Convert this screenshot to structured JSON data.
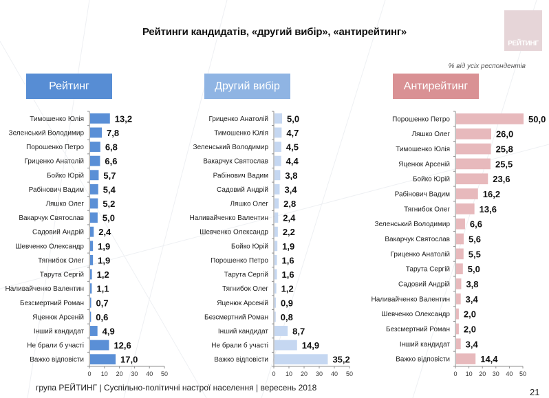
{
  "title": "Рейтинги кандидатів, «другий вибір», «антирейтинг»",
  "logo_text": "РЕЙТИНГ",
  "note": "% від усіх респондентів",
  "footer": "група РЕЙТИНГ |  Суспільно-політичні настрої населення | вересень  2018",
  "page_number": "21",
  "colors": {
    "rating": "#5a8fd6",
    "second_choice": "#c5d7f1",
    "antirating": "#e7b9bc",
    "header_rating": "#578dd4",
    "header_second": "#8fb4e3",
    "header_anti": "#d99194"
  },
  "chart_data": [
    {
      "type": "bar",
      "orientation": "horizontal",
      "title": "Рейтинг",
      "categories": [
        "Тимошенко Юлія",
        "Зеленський Володимир",
        "Порошенко Петро",
        "Гриценко Анатолій",
        "Бойко Юрій",
        "Рабінович Вадим",
        "Ляшко Олег",
        "Вакарчук Святослав",
        "Садовий Андрій",
        "Шевченко Олександр",
        "Тягнибок Олег",
        "Тарута Сергій",
        "Наливайченко Валентин",
        "Безсмертний Роман",
        "Яценюк Арсеній",
        "Інший кандидат",
        "Не брали б участі",
        "Важко відповісти"
      ],
      "values": [
        13.2,
        7.8,
        6.8,
        6.6,
        5.7,
        5.4,
        5.2,
        5.0,
        2.4,
        1.9,
        1.9,
        1.2,
        1.1,
        0.7,
        0.6,
        4.9,
        12.6,
        17.0
      ],
      "labels": [
        "13,2",
        "7,8",
        "6,8",
        "6,6",
        "5,7",
        "5,4",
        "5,2",
        "5,0",
        "2,4",
        "1,9",
        "1,9",
        "1,2",
        "1,1",
        "0,7",
        "0,6",
        "4,9",
        "12,6",
        "17,0"
      ],
      "xlim": [
        0,
        50
      ],
      "ticks": [
        "0",
        "10",
        "20",
        "30",
        "40",
        "50"
      ]
    },
    {
      "type": "bar",
      "orientation": "horizontal",
      "title": "Другий вибір",
      "categories": [
        "Гриценко Анатолій",
        "Тимошенко Юлія",
        "Зеленський Володимир",
        "Вакарчук Святослав",
        "Рабінович Вадим",
        "Садовий Андрій",
        "Ляшко Олег",
        "Наливайченко Валентин",
        "Шевченко Олександр",
        "Бойко Юрій",
        "Порошенко Петро",
        "Тарута Сергій",
        "Тягнибок Олег",
        "Яценюк Арсеній",
        "Безсмертний Роман",
        "Інший кандидат",
        "Не брали б участі",
        "Важко відповісти"
      ],
      "values": [
        5.0,
        4.7,
        4.5,
        4.4,
        3.8,
        3.4,
        2.8,
        2.4,
        2.2,
        1.9,
        1.6,
        1.6,
        1.2,
        0.9,
        0.8,
        8.7,
        14.9,
        35.2
      ],
      "labels": [
        "5,0",
        "4,7",
        "4,5",
        "4,4",
        "3,8",
        "3,4",
        "2,8",
        "2,4",
        "2,2",
        "1,9",
        "1,6",
        "1,6",
        "1,2",
        "0,9",
        "0,8",
        "8,7",
        "14,9",
        "35,2"
      ],
      "xlim": [
        0,
        50
      ],
      "ticks": [
        "0",
        "10",
        "20",
        "30",
        "40",
        "50"
      ]
    },
    {
      "type": "bar",
      "orientation": "horizontal",
      "title": "Антирейтинг",
      "categories": [
        "Порошенко Петро",
        "Ляшко Олег",
        "Тимошенко Юлія",
        "Яценюк Арсеній",
        "Бойко Юрій",
        "Рабінович Вадим",
        "Тягнибок Олег",
        "Зеленський Володимир",
        "Вакарчук Святослав",
        "Гриценко Анатолій",
        "Тарута Сергій",
        "Садовий Андрій",
        "Наливайченко Валентин",
        "Шевченко Олександр",
        "Безсмертний Роман",
        "Інший кандидат",
        "Важко відповісти"
      ],
      "values": [
        50.0,
        26.0,
        25.8,
        25.5,
        23.6,
        16.2,
        13.6,
        6.6,
        5.6,
        5.5,
        5.0,
        3.8,
        3.4,
        2.0,
        2.0,
        3.4,
        14.4
      ],
      "labels": [
        "50,0",
        "26,0",
        "25,8",
        "25,5",
        "23,6",
        "16,2",
        "13,6",
        "6,6",
        "5,6",
        "5,5",
        "5,0",
        "3,8",
        "3,4",
        "2,0",
        "2,0",
        "3,4",
        "14,4"
      ],
      "xlim": [
        0,
        50
      ],
      "ticks": [
        "0",
        "10",
        "20",
        "30",
        "40",
        "50"
      ]
    }
  ]
}
